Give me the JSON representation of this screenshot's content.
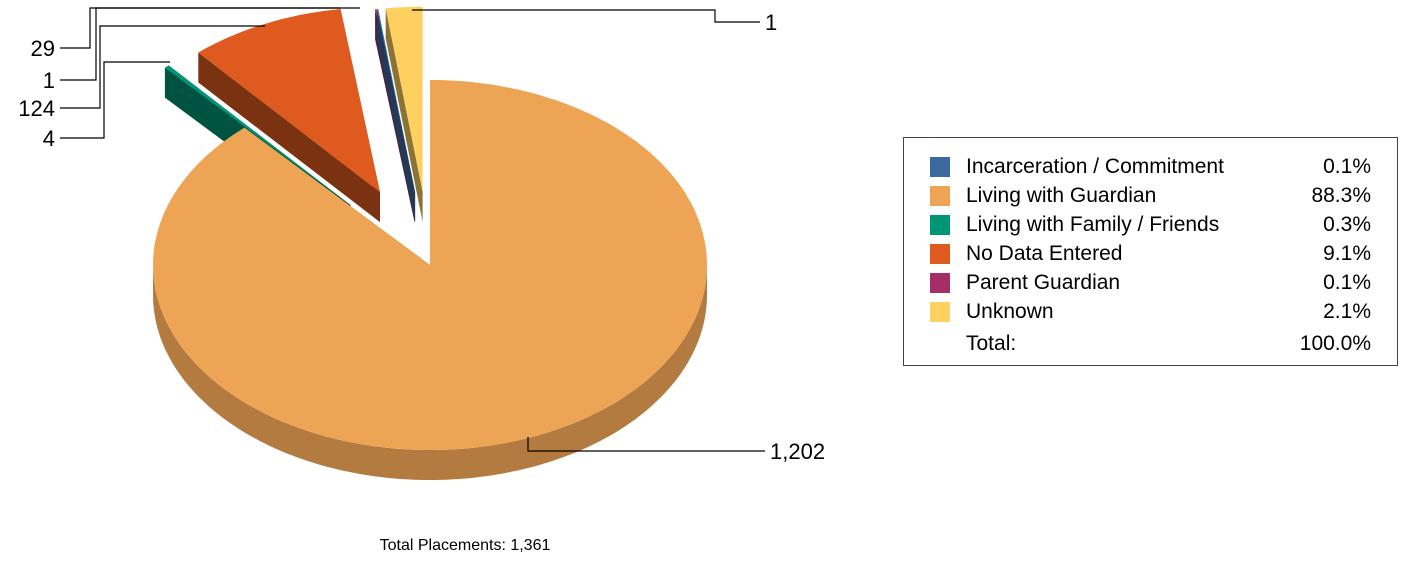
{
  "chart_data": {
    "type": "pie",
    "style": "3d-exploded",
    "slices": [
      {
        "label": "Incarceration / Commitment",
        "value": 1,
        "percent": "0.1%",
        "color": "#3d6a9e"
      },
      {
        "label": "Living with Guardian",
        "value": 1202,
        "value_label": "1,202",
        "percent": "88.3%",
        "color": "#eea455"
      },
      {
        "label": "Living with Family / Friends",
        "value": 4,
        "percent": "0.3%",
        "color": "#009577"
      },
      {
        "label": "No Data Entered",
        "value": 124,
        "percent": "9.1%",
        "color": "#df5a1f"
      },
      {
        "label": "Parent Guardian",
        "value": 1,
        "percent": "0.1%",
        "color": "#a52d68"
      },
      {
        "label": "Unknown",
        "value": 29,
        "percent": "2.1%",
        "color": "#fdd060"
      }
    ],
    "total_label": "Total:",
    "total_percent": "100.0%",
    "legend_position": "right"
  },
  "footer": {
    "total_placements": "Total Placements: 1,361"
  }
}
